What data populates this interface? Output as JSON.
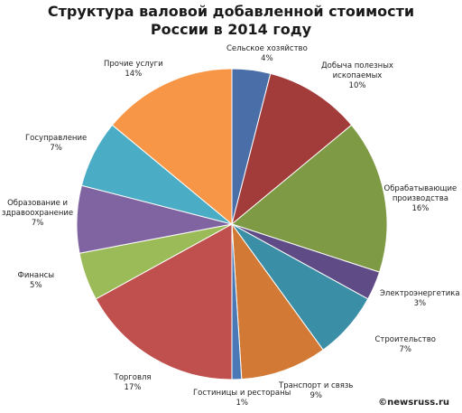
{
  "chart_data": {
    "type": "pie",
    "title_lines": [
      "Структура валовой добавленной стоимости",
      "России в 2014 году"
    ],
    "slices": [
      {
        "label_lines": [
          "Сельское хозяйство"
        ],
        "pct_label": "4%",
        "value": 4,
        "color": "#4a6ea8"
      },
      {
        "label_lines": [
          "Добыча полезных",
          "ископаемых"
        ],
        "pct_label": "10%",
        "value": 10,
        "color": "#a13c3a"
      },
      {
        "label_lines": [
          "Обрабатывающие",
          "производства"
        ],
        "pct_label": "16%",
        "value": 16,
        "color": "#7f9a45"
      },
      {
        "label_lines": [
          "Электроэнергетика"
        ],
        "pct_label": "3%",
        "value": 3,
        "color": "#5f4b86"
      },
      {
        "label_lines": [
          "Строительство"
        ],
        "pct_label": "7%",
        "value": 7,
        "color": "#3a8ea6"
      },
      {
        "label_lines": [
          "Транспорт и связь"
        ],
        "pct_label": "9%",
        "value": 9,
        "color": "#d27a35"
      },
      {
        "label_lines": [
          "Гостиницы и рестораны"
        ],
        "pct_label": "1%",
        "value": 1,
        "color": "#4a79b5"
      },
      {
        "label_lines": [
          "Торговля"
        ],
        "pct_label": "17%",
        "value": 17,
        "color": "#c0504d"
      },
      {
        "label_lines": [
          "Финансы"
        ],
        "pct_label": "5%",
        "value": 5,
        "color": "#9bbb59"
      },
      {
        "label_lines": [
          "Образование и",
          "здравоохранение"
        ],
        "pct_label": "7%",
        "value": 7,
        "color": "#8064a2"
      },
      {
        "label_lines": [
          "Госуправление"
        ],
        "pct_label": "7%",
        "value": 7,
        "color": "#4bacc6"
      },
      {
        "label_lines": [
          "Прочие услуги"
        ],
        "pct_label": "14%",
        "value": 14,
        "color": "#f79646"
      }
    ]
  },
  "watermark": "©newsruss.ru"
}
